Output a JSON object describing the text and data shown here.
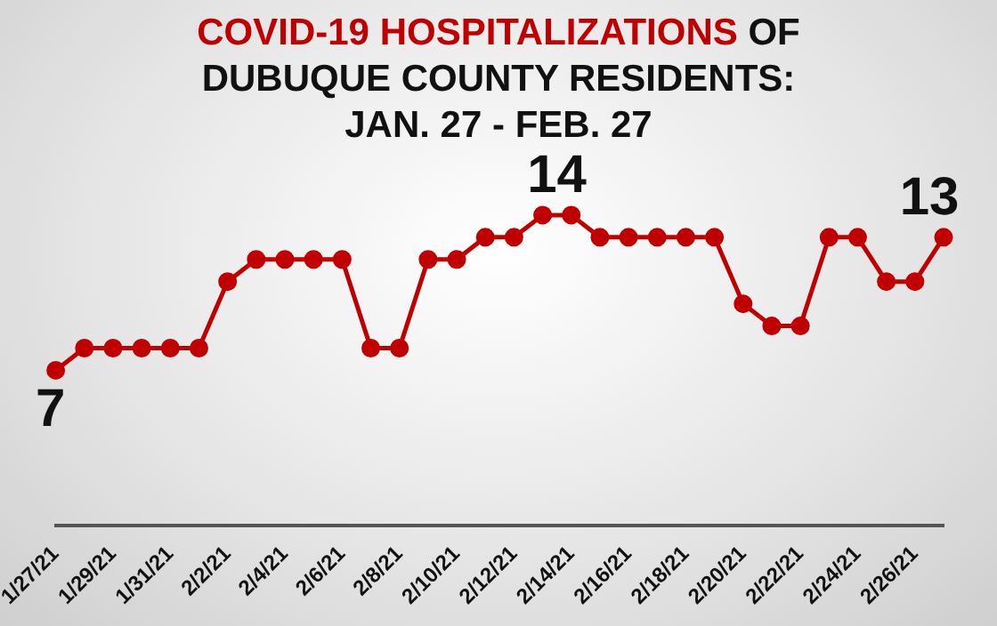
{
  "chart_data": {
    "type": "line",
    "title": "COVID-19 HOSPITALIZATIONS OF DUBUQUE COUNTY RESIDENTS: JAN. 27 - FEB. 27",
    "categories": [
      "1/27/21",
      null,
      "1/29/21",
      null,
      "1/31/21",
      null,
      "2/2/21",
      null,
      "2/4/21",
      null,
      "2/6/21",
      null,
      "2/8/21",
      null,
      "2/10/21",
      null,
      "2/12/21",
      null,
      "2/14/21",
      null,
      "2/16/21",
      null,
      "2/18/21",
      null,
      "2/20/21",
      null,
      "2/22/21",
      null,
      "2/24/21",
      null,
      "2/26/21",
      null
    ],
    "series": [
      {
        "color": "#c00000",
        "values": [
          7,
          8,
          8,
          8,
          8,
          8,
          11,
          12,
          12,
          12,
          12,
          8,
          8,
          12,
          12,
          13,
          13,
          14,
          14,
          13,
          13,
          13,
          13,
          13,
          10,
          9,
          9,
          13,
          13,
          11,
          11,
          13
        ],
        "value_labels": [
          "7",
          null,
          null,
          null,
          null,
          null,
          null,
          null,
          null,
          null,
          null,
          null,
          null,
          null,
          null,
          null,
          null,
          "14",
          null,
          null,
          null,
          null,
          null,
          null,
          null,
          null,
          null,
          null,
          null,
          null,
          null,
          "13"
        ]
      }
    ],
    "tick_labels": "x",
    "grid": false,
    "legend": false,
    "marker": "circle",
    "line_style": "solid"
  }
}
